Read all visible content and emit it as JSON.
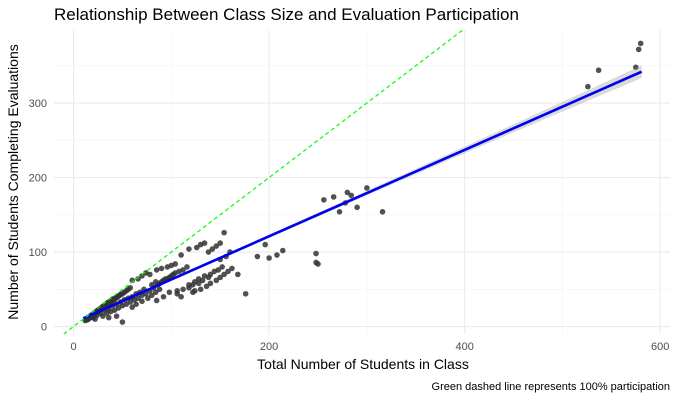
{
  "chart_data": {
    "type": "scatter",
    "title": "Relationship Between Class Size and Evaluation Participation",
    "xlabel": "Total Number of Students in Class",
    "ylabel": "Number of Students Completing Evaluations",
    "caption": "Green dashed line represents 100% participation",
    "xlim": [
      -20,
      610
    ],
    "ylim": [
      -10,
      398
    ],
    "x_ticks": [
      0,
      200,
      400,
      600
    ],
    "y_ticks": [
      0,
      100,
      200,
      300
    ],
    "grid": true,
    "legend": "none",
    "series": [
      {
        "kind": "points",
        "color": "#333333",
        "points": [
          [
            12,
            8
          ],
          [
            13,
            10
          ],
          [
            14,
            9
          ],
          [
            15,
            12
          ],
          [
            15,
            10
          ],
          [
            16,
            11
          ],
          [
            16,
            13
          ],
          [
            17,
            12
          ],
          [
            17,
            14
          ],
          [
            18,
            13
          ],
          [
            18,
            15
          ],
          [
            19,
            14
          ],
          [
            19,
            16
          ],
          [
            20,
            15
          ],
          [
            20,
            17
          ],
          [
            21,
            16
          ],
          [
            21,
            18
          ],
          [
            22,
            17
          ],
          [
            22,
            19
          ],
          [
            23,
            18
          ],
          [
            23,
            20
          ],
          [
            24,
            19
          ],
          [
            24,
            21
          ],
          [
            25,
            20
          ],
          [
            25,
            22
          ],
          [
            26,
            21
          ],
          [
            26,
            23
          ],
          [
            27,
            22
          ],
          [
            27,
            24
          ],
          [
            28,
            23
          ],
          [
            28,
            25
          ],
          [
            29,
            24
          ],
          [
            29,
            26
          ],
          [
            30,
            25
          ],
          [
            30,
            27
          ],
          [
            31,
            26
          ],
          [
            31,
            28
          ],
          [
            32,
            27
          ],
          [
            32,
            29
          ],
          [
            33,
            28
          ],
          [
            33,
            30
          ],
          [
            34,
            29
          ],
          [
            34,
            31
          ],
          [
            35,
            30
          ],
          [
            35,
            32
          ],
          [
            36,
            31
          ],
          [
            36,
            33
          ],
          [
            37,
            32
          ],
          [
            38,
            33
          ],
          [
            38,
            35
          ],
          [
            39,
            34
          ],
          [
            40,
            35
          ],
          [
            40,
            37
          ],
          [
            41,
            36
          ],
          [
            42,
            37
          ],
          [
            43,
            38
          ],
          [
            44,
            39
          ],
          [
            45,
            40
          ],
          [
            46,
            41
          ],
          [
            47,
            42
          ],
          [
            48,
            43
          ],
          [
            50,
            44
          ],
          [
            52,
            46
          ],
          [
            54,
            48
          ],
          [
            56,
            50
          ],
          [
            58,
            52
          ],
          [
            20,
            12
          ],
          [
            24,
            15
          ],
          [
            28,
            18
          ],
          [
            32,
            22
          ],
          [
            36,
            24
          ],
          [
            40,
            28
          ],
          [
            44,
            30
          ],
          [
            48,
            33
          ],
          [
            52,
            36
          ],
          [
            56,
            38
          ],
          [
            60,
            40
          ],
          [
            64,
            44
          ],
          [
            68,
            46
          ],
          [
            72,
            50
          ],
          [
            22,
            10
          ],
          [
            30,
            14
          ],
          [
            34,
            18
          ],
          [
            38,
            20
          ],
          [
            42,
            22
          ],
          [
            46,
            25
          ],
          [
            50,
            28
          ],
          [
            54,
            30
          ],
          [
            58,
            33
          ],
          [
            62,
            36
          ],
          [
            66,
            38
          ],
          [
            70,
            42
          ],
          [
            74,
            44
          ],
          [
            78,
            48
          ],
          [
            82,
            52
          ],
          [
            86,
            56
          ],
          [
            90,
            60
          ],
          [
            94,
            64
          ],
          [
            98,
            66
          ],
          [
            102,
            70
          ],
          [
            50,
            6
          ],
          [
            36,
            12
          ],
          [
            44,
            14
          ],
          [
            60,
            26
          ],
          [
            64,
            30
          ],
          [
            70,
            34
          ],
          [
            76,
            38
          ],
          [
            80,
            42
          ],
          [
            84,
            46
          ],
          [
            88,
            50
          ],
          [
            60,
            62
          ],
          [
            66,
            64
          ],
          [
            70,
            68
          ],
          [
            74,
            72
          ],
          [
            78,
            70
          ],
          [
            85,
            76
          ],
          [
            90,
            78
          ],
          [
            96,
            80
          ],
          [
            100,
            82
          ],
          [
            104,
            84
          ],
          [
            80,
            56
          ],
          [
            84,
            60
          ],
          [
            88,
            58
          ],
          [
            92,
            62
          ],
          [
            96,
            64
          ],
          [
            100,
            68
          ],
          [
            104,
            72
          ],
          [
            108,
            74
          ],
          [
            112,
            76
          ],
          [
            116,
            80
          ],
          [
            85,
            35
          ],
          [
            92,
            40
          ],
          [
            98,
            46
          ],
          [
            106,
            48
          ],
          [
            110,
            40
          ],
          [
            118,
            52
          ],
          [
            122,
            56
          ],
          [
            128,
            58
          ],
          [
            132,
            62
          ],
          [
            138,
            66
          ],
          [
            106,
            44
          ],
          [
            112,
            50
          ],
          [
            118,
            56
          ],
          [
            124,
            60
          ],
          [
            128,
            64
          ],
          [
            134,
            68
          ],
          [
            140,
            70
          ],
          [
            144,
            74
          ],
          [
            148,
            76
          ],
          [
            152,
            80
          ],
          [
            110,
            96
          ],
          [
            118,
            104
          ],
          [
            126,
            106
          ],
          [
            130,
            110
          ],
          [
            134,
            112
          ],
          [
            138,
            100
          ],
          [
            142,
            104
          ],
          [
            146,
            108
          ],
          [
            150,
            112
          ],
          [
            154,
            126
          ],
          [
            122,
            46
          ],
          [
            124,
            48
          ],
          [
            130,
            50
          ],
          [
            136,
            54
          ],
          [
            140,
            58
          ],
          [
            146,
            62
          ],
          [
            150,
            66
          ],
          [
            154,
            70
          ],
          [
            158,
            74
          ],
          [
            162,
            78
          ],
          [
            150,
            90
          ],
          [
            156,
            94
          ],
          [
            160,
            100
          ],
          [
            168,
            70
          ],
          [
            176,
            44
          ],
          [
            188,
            94
          ],
          [
            196,
            110
          ],
          [
            200,
            92
          ],
          [
            208,
            96
          ],
          [
            214,
            102
          ],
          [
            248,
            98
          ],
          [
            248,
            86
          ],
          [
            250,
            84
          ],
          [
            256,
            170
          ],
          [
            266,
            174
          ],
          [
            272,
            154
          ],
          [
            278,
            166
          ],
          [
            280,
            180
          ],
          [
            284,
            176
          ],
          [
            290,
            160
          ],
          [
            300,
            186
          ],
          [
            316,
            154
          ],
          [
            526,
            322
          ],
          [
            537,
            344
          ],
          [
            575,
            348
          ],
          [
            578,
            372
          ],
          [
            580,
            380
          ]
        ]
      },
      {
        "kind": "regression",
        "label": "",
        "color": "#0000ee",
        "from": [
          10,
          11
        ],
        "to": [
          581,
          342
        ]
      },
      {
        "kind": "reference",
        "label": "",
        "color": "#00ff00",
        "from": [
          -10,
          -10
        ],
        "to": [
          400,
          400
        ]
      }
    ]
  }
}
